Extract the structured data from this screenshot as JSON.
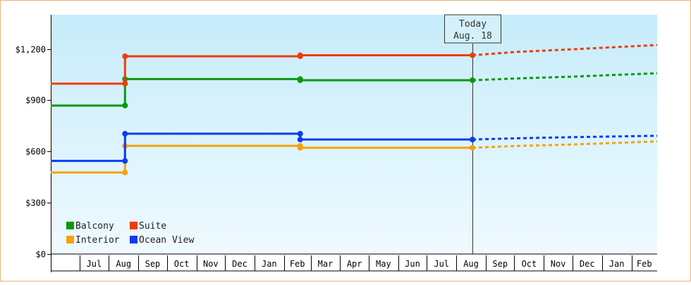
{
  "chart_data": {
    "type": "line",
    "y_ticks": [
      {
        "value": 0,
        "label": "$0"
      },
      {
        "value": 300,
        "label": "$300"
      },
      {
        "value": 600,
        "label": "$600"
      },
      {
        "value": 900,
        "label": "$900"
      },
      {
        "value": 1200,
        "label": "$1,200"
      }
    ],
    "ylim": [
      0,
      1400
    ],
    "x_start": "2016-06-01",
    "x_end": "2018-02-28",
    "x_month_labels": [
      {
        "label": "Jul",
        "start": "2016-07-01",
        "end": "2016-08-01"
      },
      {
        "label": "Aug",
        "start": "2016-08-01",
        "end": "2016-09-01"
      },
      {
        "label": "Sep",
        "start": "2016-09-01",
        "end": "2016-10-01"
      },
      {
        "label": "Oct",
        "start": "2016-10-01",
        "end": "2016-11-01"
      },
      {
        "label": "Nov",
        "start": "2016-11-01",
        "end": "2016-12-01"
      },
      {
        "label": "Dec",
        "start": "2016-12-01",
        "end": "2017-01-01"
      },
      {
        "label": "Jan",
        "start": "2017-01-01",
        "end": "2017-02-01"
      },
      {
        "label": "Feb",
        "start": "2017-02-01",
        "end": "2017-03-01"
      },
      {
        "label": "Mar",
        "start": "2017-03-01",
        "end": "2017-04-01"
      },
      {
        "label": "Apr",
        "start": "2017-04-01",
        "end": "2017-05-01"
      },
      {
        "label": "May",
        "start": "2017-05-01",
        "end": "2017-06-01"
      },
      {
        "label": "Jun",
        "start": "2017-06-01",
        "end": "2017-07-01"
      },
      {
        "label": "Jul",
        "start": "2017-07-01",
        "end": "2017-08-01"
      },
      {
        "label": "Aug",
        "start": "2017-08-01",
        "end": "2017-09-01"
      },
      {
        "label": "Sep",
        "start": "2017-09-01",
        "end": "2017-10-01"
      },
      {
        "label": "Oct",
        "start": "2017-10-01",
        "end": "2017-11-01"
      },
      {
        "label": "Nov",
        "start": "2017-11-01",
        "end": "2017-12-01"
      },
      {
        "label": "Dec",
        "start": "2017-12-01",
        "end": "2018-01-01"
      },
      {
        "label": "Jan",
        "start": "2018-01-01",
        "end": "2018-02-01"
      },
      {
        "label": "Feb",
        "start": "2018-02-01",
        "end": "2018-03-01"
      }
    ],
    "today_marker": {
      "title": "Today",
      "label": "Aug. 18",
      "date": "2017-08-18"
    },
    "grid": false,
    "legend_position": "bottom-left",
    "background_gradient": [
      "#c6ecfa",
      "#effaff"
    ],
    "series": [
      {
        "name": "Balcony",
        "color": "#0a9a0a",
        "points": [
          [
            "2016-06-01",
            869
          ],
          [
            "2016-08-18",
            869
          ],
          [
            "2016-08-18",
            1024
          ],
          [
            "2017-02-18",
            1024
          ],
          [
            "2017-02-18",
            1017
          ],
          [
            "2017-08-18",
            1017
          ]
        ],
        "projection": [
          [
            "2017-08-18",
            1017
          ],
          [
            "2017-10-01",
            1027
          ],
          [
            "2017-12-01",
            1038
          ],
          [
            "2018-02-28",
            1058
          ]
        ]
      },
      {
        "name": "Suite",
        "color": "#f03c0a",
        "points": [
          [
            "2016-06-01",
            997
          ],
          [
            "2016-08-18",
            997
          ],
          [
            "2016-08-18",
            1157
          ],
          [
            "2017-02-18",
            1157
          ],
          [
            "2017-02-18",
            1163
          ],
          [
            "2017-08-18",
            1163
          ]
        ],
        "projection": [
          [
            "2017-08-18",
            1163
          ],
          [
            "2017-10-01",
            1182
          ],
          [
            "2017-12-01",
            1198
          ],
          [
            "2018-02-28",
            1223
          ]
        ]
      },
      {
        "name": "Interior",
        "color": "#f5a20a",
        "points": [
          [
            "2016-06-01",
            477
          ],
          [
            "2016-08-18",
            477
          ],
          [
            "2016-08-18",
            633
          ],
          [
            "2017-02-18",
            633
          ],
          [
            "2017-02-18",
            622
          ],
          [
            "2017-08-18",
            622
          ]
        ],
        "projection": [
          [
            "2017-08-18",
            622
          ],
          [
            "2017-10-01",
            632
          ],
          [
            "2017-12-01",
            641
          ],
          [
            "2018-02-28",
            659
          ]
        ]
      },
      {
        "name": "Ocean View",
        "color": "#0a3cf0",
        "points": [
          [
            "2016-06-01",
            545
          ],
          [
            "2016-08-18",
            545
          ],
          [
            "2016-08-18",
            704
          ],
          [
            "2017-02-18",
            704
          ],
          [
            "2017-02-18",
            670
          ],
          [
            "2017-08-18",
            670
          ]
        ],
        "projection": [
          [
            "2017-08-18",
            670
          ],
          [
            "2017-10-01",
            677
          ],
          [
            "2017-12-01",
            684
          ],
          [
            "2018-02-28",
            692
          ]
        ]
      }
    ]
  }
}
